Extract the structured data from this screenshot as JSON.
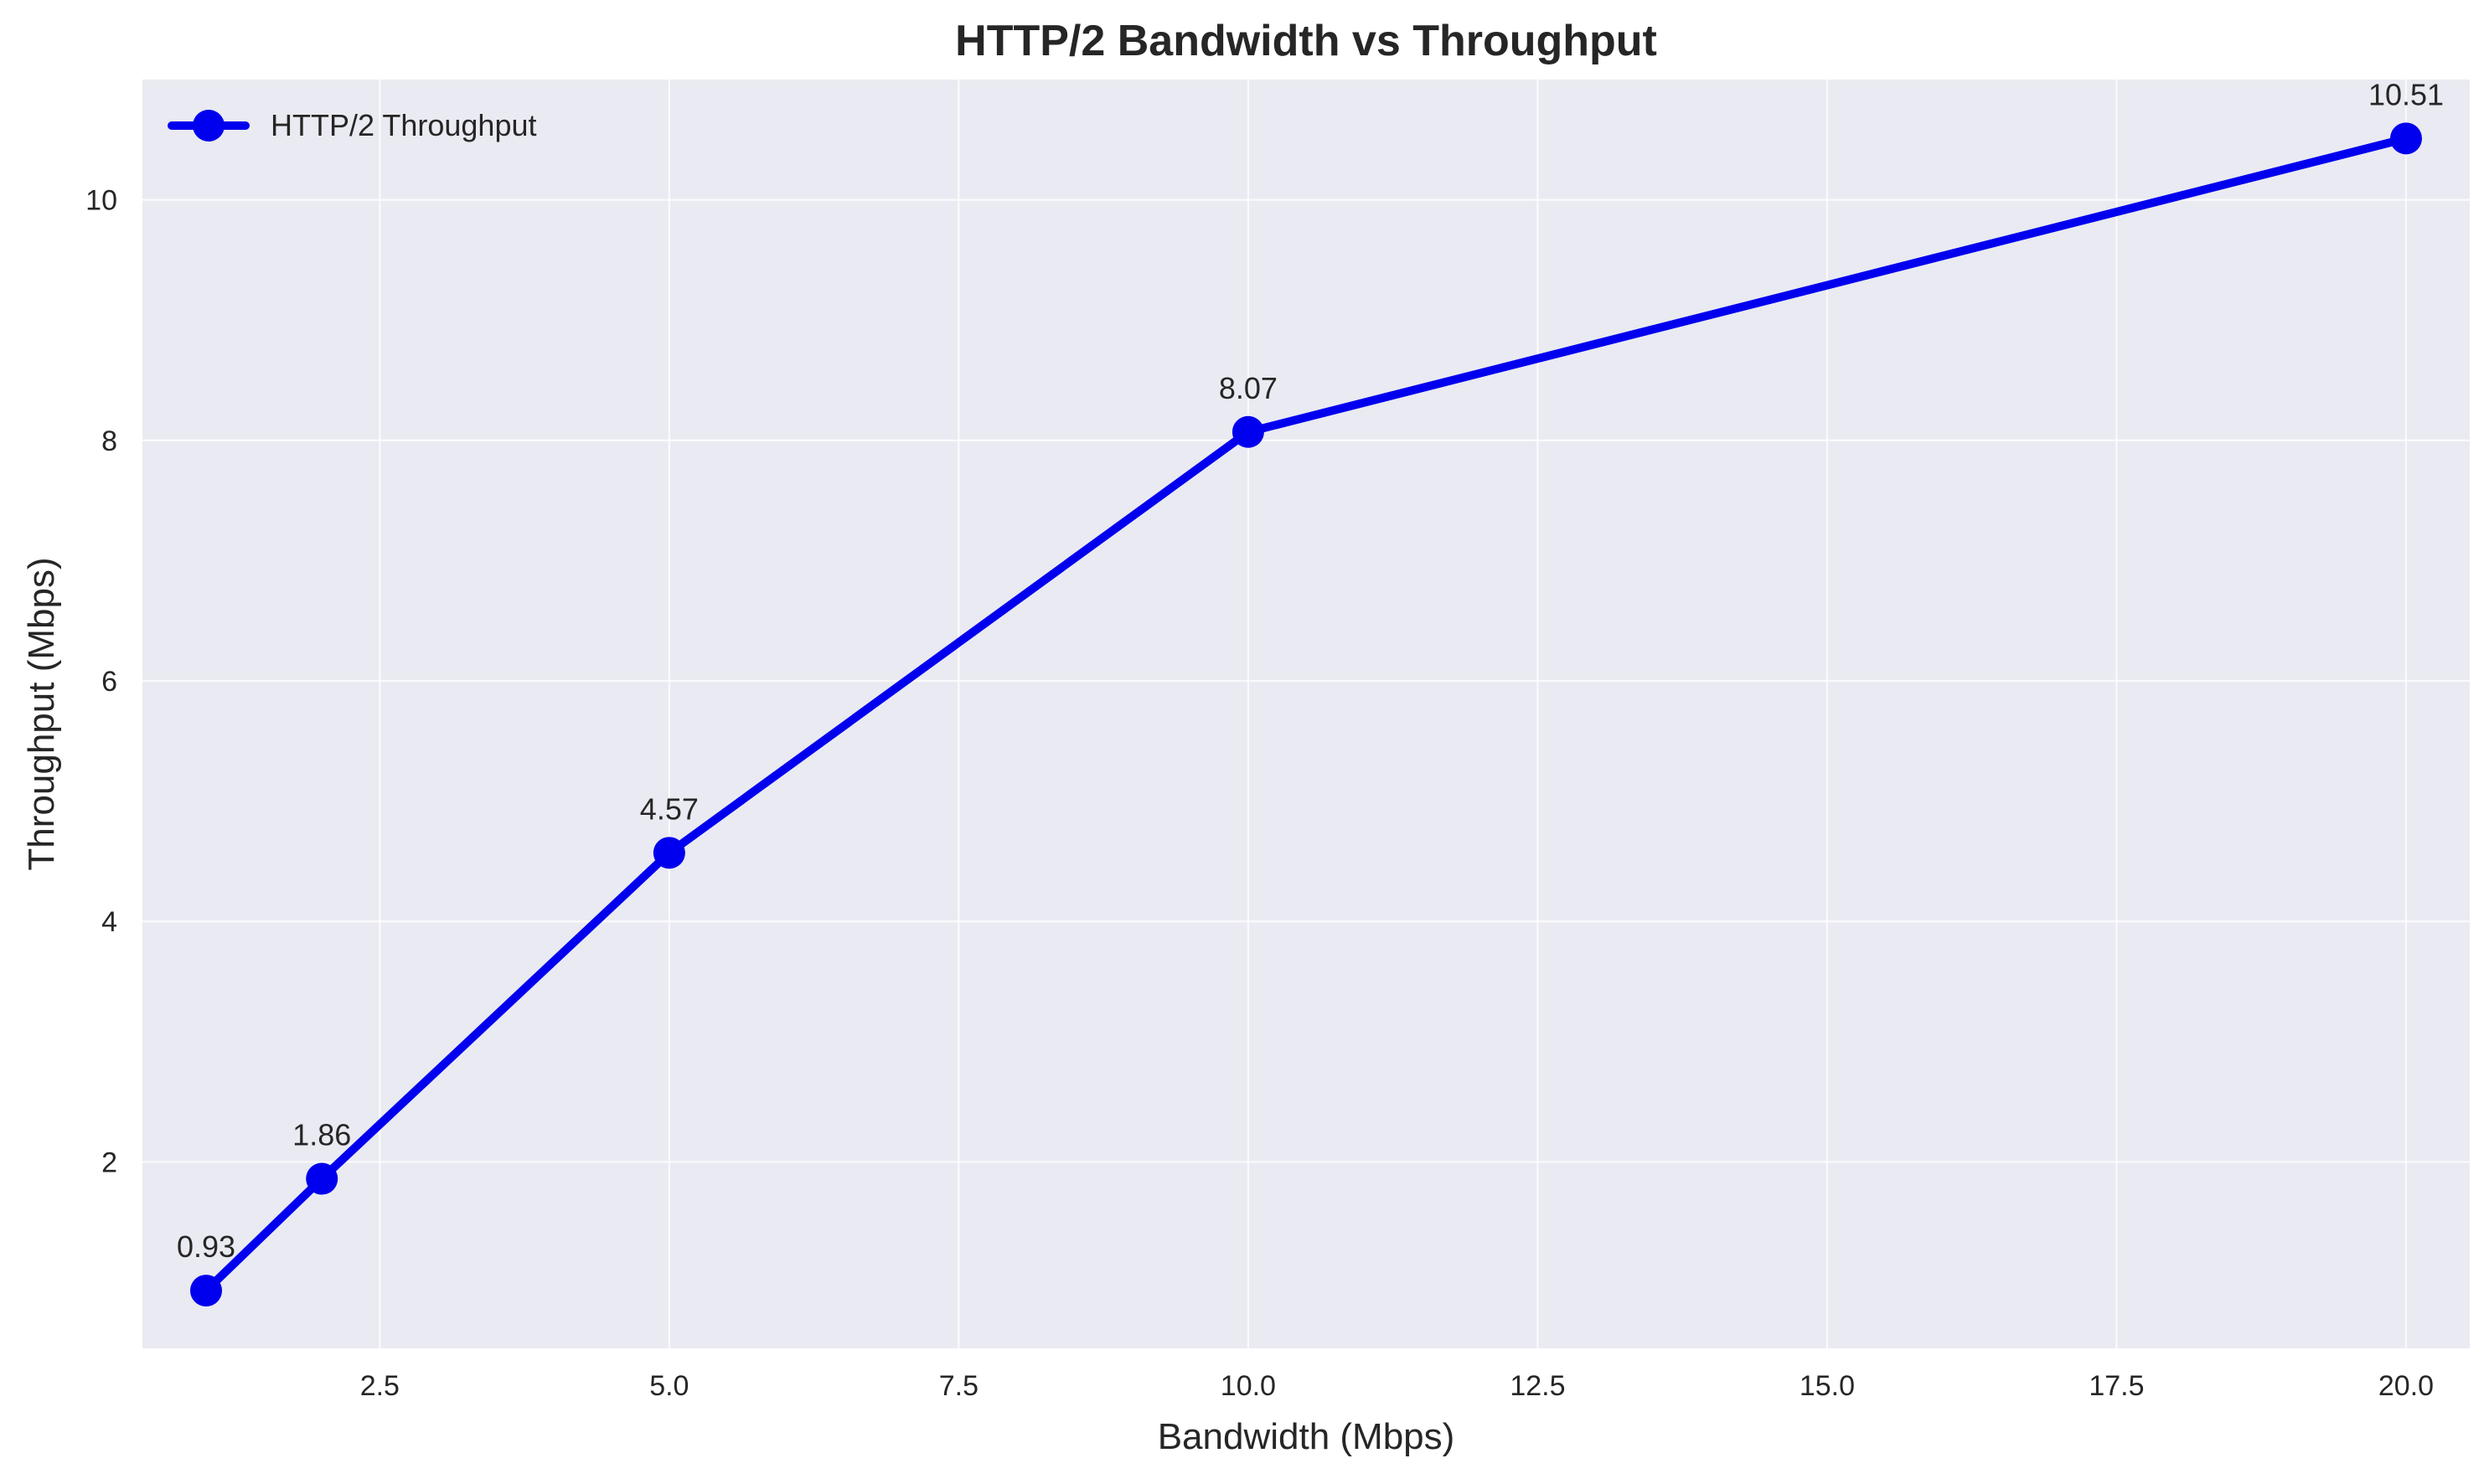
{
  "chart_data": {
    "type": "line",
    "title": "HTTP/2 Bandwidth vs Throughput",
    "xlabel": "Bandwidth (Mbps)",
    "ylabel": "Throughput (Mbps)",
    "xlim": [
      0.45,
      20.55
    ],
    "ylim": [
      0.45,
      11.0
    ],
    "x_ticks": [
      2.5,
      5.0,
      7.5,
      10.0,
      12.5,
      15.0,
      17.5,
      20.0
    ],
    "x_tick_labels": [
      "2.5",
      "5.0",
      "7.5",
      "10.0",
      "12.5",
      "15.0",
      "17.5",
      "20.0"
    ],
    "y_ticks": [
      2,
      4,
      6,
      8,
      10
    ],
    "y_tick_labels": [
      "2",
      "4",
      "6",
      "8",
      "10"
    ],
    "grid": true,
    "legend_position": "top-left",
    "colors": {
      "plot_background": "#eaeaf2",
      "grid": "#ffffff",
      "series": "#0000ee"
    },
    "series": [
      {
        "name": "HTTP/2 Throughput",
        "x": [
          1,
          2,
          5,
          10,
          20
        ],
        "y": [
          0.93,
          1.86,
          4.57,
          8.07,
          10.51
        ],
        "data_labels": [
          "0.93",
          "1.86",
          "4.57",
          "8.07",
          "10.51"
        ]
      }
    ]
  }
}
